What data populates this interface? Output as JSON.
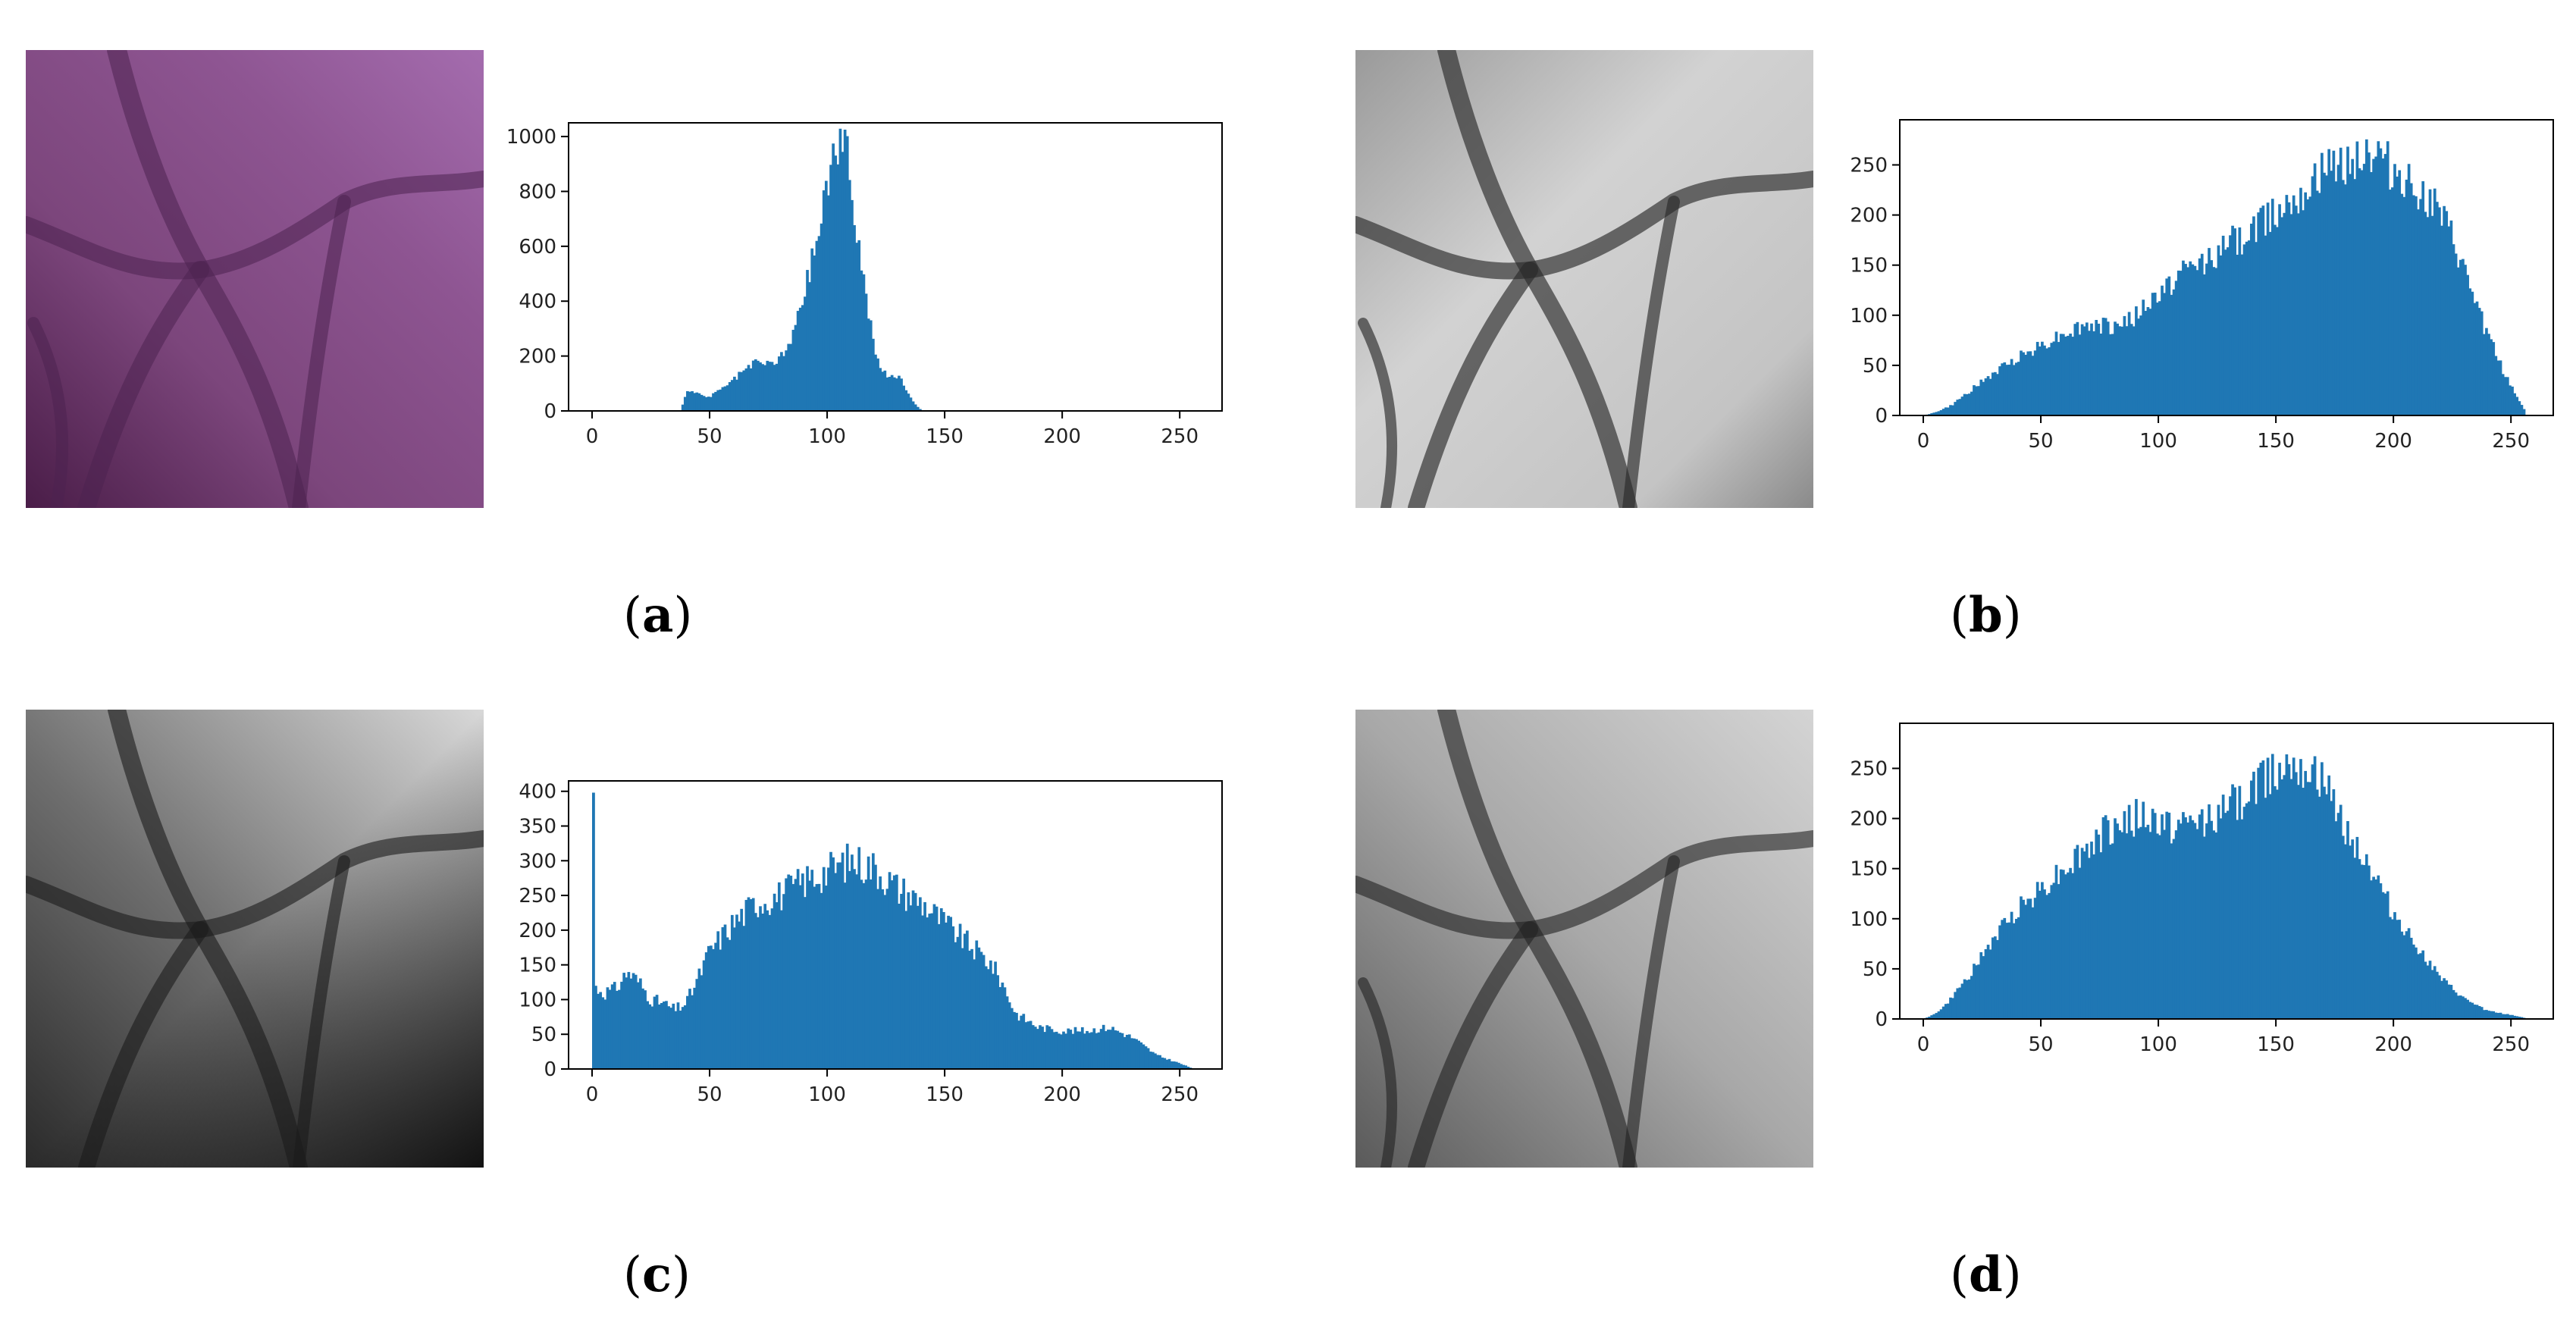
{
  "colors": {
    "bar": "#1f77b4",
    "axes": "#000000"
  },
  "panels": [
    {
      "caption_open": "(",
      "caption_letter": "a",
      "caption_close": ")",
      "image_style": "purple",
      "chart_data": {
        "type": "bar",
        "xlim": [
          -10,
          268
        ],
        "ylim": [
          0,
          1050
        ],
        "xticks": [
          0,
          50,
          100,
          150,
          200,
          250
        ],
        "yticks": [
          0,
          200,
          400,
          600,
          800,
          1000
        ],
        "grid": false,
        "profile": [
          [
            38,
            0
          ],
          [
            39,
            50
          ],
          [
            41,
            75
          ],
          [
            45,
            60
          ],
          [
            50,
            50
          ],
          [
            55,
            80
          ],
          [
            60,
            110
          ],
          [
            65,
            150
          ],
          [
            70,
            175
          ],
          [
            75,
            170
          ],
          [
            80,
            190
          ],
          [
            85,
            260
          ],
          [
            90,
            420
          ],
          [
            95,
            600
          ],
          [
            100,
            820
          ],
          [
            103,
            950
          ],
          [
            106,
            1000
          ],
          [
            108,
            940
          ],
          [
            111,
            780
          ],
          [
            114,
            560
          ],
          [
            118,
            330
          ],
          [
            122,
            160
          ],
          [
            126,
            120
          ],
          [
            130,
            130
          ],
          [
            133,
            90
          ],
          [
            136,
            40
          ],
          [
            139,
            10
          ],
          [
            141,
            0
          ]
        ]
      }
    },
    {
      "caption_open": "(",
      "caption_letter": "b",
      "caption_close": ")",
      "image_style": "gray-bright",
      "chart_data": {
        "type": "bar",
        "xlim": [
          -10,
          268
        ],
        "ylim": [
          0,
          295
        ],
        "xticks": [
          0,
          50,
          100,
          150,
          200,
          250
        ],
        "yticks": [
          0,
          50,
          100,
          150,
          200,
          250
        ],
        "grid": false,
        "profile": [
          [
            0,
            0
          ],
          [
            5,
            3
          ],
          [
            12,
            10
          ],
          [
            20,
            25
          ],
          [
            30,
            42
          ],
          [
            40,
            58
          ],
          [
            50,
            70
          ],
          [
            60,
            82
          ],
          [
            70,
            90
          ],
          [
            80,
            88
          ],
          [
            90,
            98
          ],
          [
            100,
            120
          ],
          [
            110,
            142
          ],
          [
            120,
            155
          ],
          [
            130,
            170
          ],
          [
            140,
            185
          ],
          [
            150,
            205
          ],
          [
            160,
            225
          ],
          [
            170,
            240
          ],
          [
            180,
            255
          ],
          [
            188,
            262
          ],
          [
            195,
            255
          ],
          [
            203,
            238
          ],
          [
            210,
            225
          ],
          [
            218,
            205
          ],
          [
            225,
            175
          ],
          [
            232,
            130
          ],
          [
            240,
            80
          ],
          [
            248,
            38
          ],
          [
            255,
            8
          ],
          [
            259,
            0
          ]
        ]
      }
    },
    {
      "caption_open": "(",
      "caption_letter": "c",
      "caption_close": ")",
      "image_style": "gray-dark",
      "chart_data": {
        "type": "bar",
        "xlim": [
          -10,
          268
        ],
        "ylim": [
          0,
          415
        ],
        "xticks": [
          0,
          50,
          100,
          150,
          200,
          250
        ],
        "yticks": [
          0,
          50,
          100,
          150,
          200,
          250,
          300,
          350,
          400
        ],
        "grid": false,
        "spike": [
          0,
          398
        ],
        "profile": [
          [
            0,
            120
          ],
          [
            5,
            110
          ],
          [
            10,
            115
          ],
          [
            15,
            140
          ],
          [
            20,
            125
          ],
          [
            25,
            100
          ],
          [
            30,
            95
          ],
          [
            35,
            85
          ],
          [
            40,
            95
          ],
          [
            45,
            130
          ],
          [
            50,
            170
          ],
          [
            60,
            210
          ],
          [
            70,
            240
          ],
          [
            80,
            250
          ],
          [
            90,
            270
          ],
          [
            100,
            285
          ],
          [
            110,
            300
          ],
          [
            120,
            290
          ],
          [
            130,
            260
          ],
          [
            140,
            240
          ],
          [
            150,
            210
          ],
          [
            160,
            180
          ],
          [
            170,
            150
          ],
          [
            175,
            120
          ],
          [
            180,
            80
          ],
          [
            190,
            60
          ],
          [
            200,
            55
          ],
          [
            210,
            55
          ],
          [
            220,
            60
          ],
          [
            230,
            45
          ],
          [
            240,
            20
          ],
          [
            250,
            8
          ],
          [
            256,
            0
          ]
        ]
      }
    },
    {
      "caption_open": "(",
      "caption_letter": "d",
      "caption_close": ")",
      "image_style": "gray-mid",
      "chart_data": {
        "type": "bar",
        "xlim": [
          -10,
          268
        ],
        "ylim": [
          0,
          295
        ],
        "xticks": [
          0,
          50,
          100,
          150,
          200,
          250
        ],
        "yticks": [
          0,
          50,
          100,
          150,
          200,
          250
        ],
        "grid": false,
        "profile": [
          [
            0,
            0
          ],
          [
            5,
            5
          ],
          [
            10,
            15
          ],
          [
            20,
            45
          ],
          [
            30,
            80
          ],
          [
            40,
            110
          ],
          [
            50,
            130
          ],
          [
            60,
            150
          ],
          [
            70,
            170
          ],
          [
            80,
            190
          ],
          [
            90,
            200
          ],
          [
            100,
            195
          ],
          [
            110,
            190
          ],
          [
            120,
            200
          ],
          [
            130,
            210
          ],
          [
            140,
            230
          ],
          [
            150,
            250
          ],
          [
            158,
            262
          ],
          [
            165,
            250
          ],
          [
            172,
            225
          ],
          [
            180,
            190
          ],
          [
            190,
            150
          ],
          [
            200,
            105
          ],
          [
            210,
            72
          ],
          [
            220,
            40
          ],
          [
            230,
            20
          ],
          [
            240,
            8
          ],
          [
            250,
            4
          ],
          [
            258,
            0
          ]
        ]
      }
    }
  ]
}
